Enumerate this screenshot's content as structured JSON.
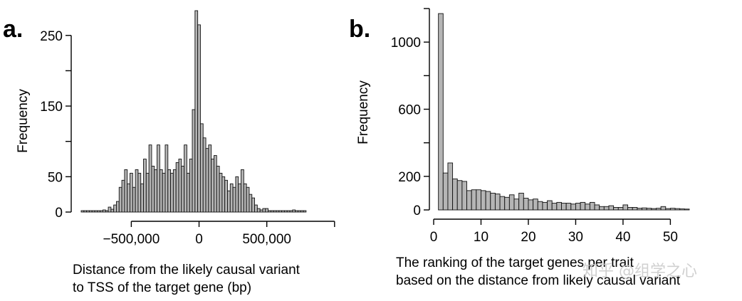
{
  "watermark": "知乎 @组学之心",
  "chart_data": [
    {
      "type": "bar",
      "panel_label": "a.",
      "xlabel_lines": [
        "Distance from the likely causal variant",
        "to TSS of the target gene (bp)"
      ],
      "ylabel": "Frequency",
      "xlim": [
        -870000,
        980000
      ],
      "ylim": [
        0,
        285
      ],
      "x_ticks": [
        -500000,
        0,
        500000,
        1000000
      ],
      "x_tick_labels": [
        "−500,000",
        "0",
        "500,000",
        ""
      ],
      "y_ticks": [
        0,
        50,
        100,
        150,
        200,
        250
      ],
      "y_tick_labels": [
        "0",
        "50",
        "",
        "150",
        "",
        "250"
      ],
      "bin_start": -870000,
      "bin_width": 20000,
      "values": [
        2,
        2,
        2,
        2,
        2,
        2,
        2,
        2,
        3,
        2,
        7,
        4,
        10,
        15,
        35,
        45,
        60,
        40,
        55,
        35,
        60,
        55,
        40,
        75,
        55,
        95,
        65,
        60,
        95,
        60,
        55,
        95,
        60,
        55,
        60,
        70,
        75,
        65,
        95,
        55,
        75,
        145,
        285,
        265,
        125,
        105,
        90,
        95,
        75,
        80,
        65,
        55,
        50,
        45,
        30,
        40,
        35,
        50,
        40,
        60,
        40,
        35,
        25,
        20,
        10,
        5,
        3,
        5,
        5,
        2,
        2,
        2,
        2,
        2,
        2,
        2,
        2,
        2,
        3,
        2,
        2,
        2,
        2
      ]
    },
    {
      "type": "bar",
      "panel_label": "b.",
      "xlabel_lines": [
        "The ranking of the target genes per trait",
        "based on the distance from likely causal variant"
      ],
      "ylabel": "Frequency",
      "xlim": [
        0,
        54
      ],
      "ylim": [
        0,
        1200
      ],
      "x_ticks": [
        0,
        10,
        20,
        30,
        40,
        50
      ],
      "x_tick_labels": [
        "0",
        "10",
        "20",
        "30",
        "40",
        "50"
      ],
      "y_ticks": [
        0,
        200,
        400,
        600,
        800,
        1000,
        1200
      ],
      "y_tick_labels": [
        "0",
        "200",
        "",
        "600",
        "",
        "1000",
        ""
      ],
      "bin_start": 1,
      "bin_width": 1,
      "values": [
        1170,
        220,
        280,
        185,
        175,
        170,
        115,
        120,
        120,
        115,
        110,
        100,
        95,
        80,
        75,
        90,
        65,
        100,
        70,
        60,
        65,
        50,
        45,
        55,
        40,
        45,
        40,
        40,
        35,
        40,
        45,
        35,
        45,
        30,
        20,
        20,
        25,
        15,
        15,
        30,
        15,
        15,
        10,
        12,
        10,
        8,
        10,
        20,
        8,
        10,
        8,
        6,
        5
      ]
    }
  ]
}
